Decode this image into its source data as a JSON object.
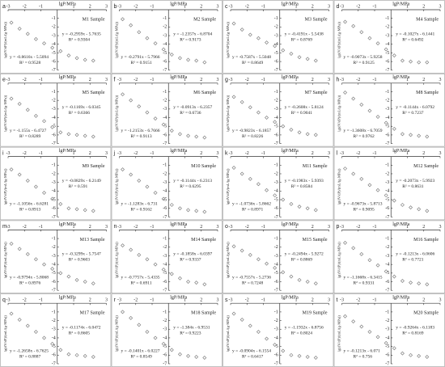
{
  "chart_data": [
    {
      "type": "scatter",
      "panel": "a",
      "sample": "M1 Sample",
      "x_label": "lgP/MPa",
      "y_label": "lg(dV/dP)/(mL/(g·MPa))",
      "xlim": [
        -3,
        3
      ],
      "ylim": [
        -7,
        0
      ],
      "xticks": [
        -3,
        -2,
        -1,
        1,
        2,
        3
      ],
      "yticks": [
        -1,
        -2,
        -3,
        -4,
        -5,
        -6,
        -7
      ],
      "color": "#808080",
      "x": [
        -2.8,
        -2.3,
        -1.8,
        -1.3,
        -0.8,
        -0.3,
        0.2,
        0.7,
        1.2,
        1.7,
        2.2
      ],
      "y": [
        -1.5,
        -2.2,
        -2.8,
        -3.4,
        -3.9,
        -4.4,
        -4.8,
        -5.3,
        -5.6,
        -5.8,
        -5.9
      ],
      "annotations": [
        "y = -0.2959x - 5.7635",
        "R² = 0.9304",
        "y = -0.8616x - 5.5094",
        "R² = 0.9528"
      ]
    },
    {
      "type": "scatter",
      "panel": "b",
      "sample": "M2 Sample",
      "x_label": "lgP/MPa",
      "y_label": "lg(dV/dP)/(mL/(g·MPa))",
      "xlim": [
        -3,
        3
      ],
      "ylim": [
        -7,
        0
      ],
      "xticks": [
        -3,
        -2,
        -1,
        1,
        2,
        3
      ],
      "yticks": [
        -1,
        -2,
        -3,
        -4,
        -5,
        -6,
        -7
      ],
      "color": "#808080",
      "x": [
        -2.8,
        -2.3,
        -1.8,
        -1.3,
        -0.8,
        -0.3,
        0.2,
        0.7,
        1.2,
        1.7,
        2.2
      ],
      "y": [
        -1.1,
        -1.8,
        -2.6,
        -3.3,
        -3.9,
        -4.6,
        -5.2,
        -5.6,
        -5.8,
        -5.9,
        -6.1
      ],
      "annotations": [
        "y = -1.2357x - 6.8704",
        "R² = 0.9173",
        "y = -0.2791x - 5.7966",
        "R² = 0.9151"
      ]
    },
    {
      "type": "scatter",
      "panel": "c",
      "sample": "M3 Sample",
      "x_label": "lgP/MPa",
      "y_label": "lg(dV/dP)/(mL/(g·MPa))",
      "xlim": [
        -3,
        3
      ],
      "ylim": [
        -7,
        0
      ],
      "xticks": [
        -3,
        -2,
        -1,
        1,
        2,
        3
      ],
      "yticks": [
        -1,
        -2,
        -3,
        -4,
        -5,
        -6,
        -7
      ],
      "color": "#808080",
      "x": [
        -2.8,
        -2.3,
        -1.8,
        -1.3,
        -0.8,
        -0.3,
        0.2,
        0.7,
        1.2,
        1.7,
        2.2
      ],
      "y": [
        -1.6,
        -2.3,
        -2.9,
        -3.3,
        -3.8,
        -4.2,
        -4.7,
        -5.1,
        -5.5,
        -5.7,
        -5.9
      ],
      "annotations": [
        "y = -0.4191x - 5.5438",
        "R² = 0.8769",
        "y = -0.7587x - 5.5048",
        "R² = 0.8649"
      ]
    },
    {
      "type": "scatter",
      "panel": "d",
      "sample": "M4 Sample",
      "x_label": "lgP/MPa",
      "y_label": "lg(dV/dP)/(mL/(g·MPa))",
      "xlim": [
        -3,
        3
      ],
      "ylim": [
        -7,
        0
      ],
      "xticks": [
        -3,
        -2,
        -1,
        1,
        2,
        3
      ],
      "yticks": [
        -1,
        -2,
        -3,
        -4,
        -5,
        -6,
        -7
      ],
      "color": "#808080",
      "x": [
        -2.8,
        -2.3,
        -1.8,
        -1.3,
        -0.8,
        -0.3,
        0.2,
        0.7,
        1.2,
        1.7,
        2.2
      ],
      "y": [
        -1.4,
        -1.9,
        -2.6,
        -3.3,
        -3.9,
        -4.6,
        -5.3,
        -5.9,
        -6.0,
        -6.1,
        -6.1
      ],
      "annotations": [
        "y = -0.1027x - 6.1441",
        "R² = 0.6492",
        "y = -0.9073x - 5.9258",
        "R² = 0.9125"
      ]
    },
    {
      "type": "scatter",
      "panel": "e",
      "sample": "M5 Sample",
      "x_label": "lgP/MPa",
      "y_label": "lg(dV/dP)/(mL/(g·MPa))",
      "xlim": [
        -3,
        3
      ],
      "ylim": [
        -7,
        0
      ],
      "xticks": [
        -3,
        -2,
        -1,
        1,
        2,
        3
      ],
      "yticks": [
        -1,
        -2,
        -3,
        -4,
        -5,
        -6,
        -7
      ],
      "color": "#808080",
      "x": [
        -2.8,
        -2.3,
        -1.8,
        -1.3,
        -0.8,
        -0.3,
        0.2,
        0.7,
        1.2,
        1.7,
        2.2
      ],
      "y": [
        -1.8,
        -2.4,
        -3.1,
        -3.8,
        -4.4,
        -5.1,
        -5.7,
        -5.9,
        -6.0,
        -6.1,
        -6.2
      ],
      "annotations": [
        "y = -0.1169x - 6.0345",
        "R² = 0.6366",
        "y = -1.155x - 6.4727",
        "R² = 0.8289"
      ]
    },
    {
      "type": "scatter",
      "panel": "f",
      "sample": "M6 Sample",
      "x_label": "lgP/MPa",
      "y_label": "lg(dV/dP)/(mL/(g·MPa))",
      "xlim": [
        -3,
        3
      ],
      "ylim": [
        -7,
        0
      ],
      "xticks": [
        -3,
        -2,
        -1,
        1,
        2,
        3
      ],
      "yticks": [
        -1,
        -2,
        -3,
        -4,
        -5,
        -6,
        -7
      ],
      "color": "#808080",
      "x": [
        -2.8,
        -2.3,
        -1.8,
        -1.3,
        -0.8,
        -0.3,
        0.2,
        0.7,
        1.2,
        1.7,
        2.2
      ],
      "y": [
        -1.3,
        -2.0,
        -2.7,
        -3.4,
        -4.1,
        -4.8,
        -5.5,
        -5.9,
        -6.1,
        -6.2,
        -6.3
      ],
      "annotations": [
        "y = -0.0913x - 6.2357",
        "R² = 0.6736",
        "y = -1.2153x - 6.7666",
        "R² = 0.9113"
      ]
    },
    {
      "type": "scatter",
      "panel": "g",
      "sample": "M7 Sample",
      "x_label": "lgP/MPa",
      "y_label": "lg(dV/dP)/(mL/(g·MPa))",
      "xlim": [
        -3,
        3
      ],
      "ylim": [
        -7,
        0
      ],
      "xticks": [
        -3,
        -2,
        -1,
        1,
        2,
        3
      ],
      "yticks": [
        -1,
        -2,
        -3,
        -4,
        -5,
        -6,
        -7
      ],
      "color": "#808080",
      "x": [
        -2.8,
        -2.3,
        -1.8,
        -1.3,
        -0.8,
        -0.3,
        0.2,
        0.7,
        1.2,
        1.7,
        2.2
      ],
      "y": [
        -1.6,
        -2.2,
        -2.8,
        -3.4,
        -4.0,
        -4.5,
        -5.0,
        -5.4,
        -5.7,
        -5.9,
        -6.0
      ],
      "annotations": [
        "y = -0.2608x - 5.8124",
        "R² = 0.9041",
        "y = -0.9823x - 6.1857",
        "R² = 0.8226"
      ]
    },
    {
      "type": "scatter",
      "panel": "h",
      "sample": "M8 Sample",
      "x_label": "lgP/MPa",
      "y_label": "lg(dV/dP)/(mL/(g·MPa))",
      "xlim": [
        -3,
        3
      ],
      "ylim": [
        -7,
        0
      ],
      "xticks": [
        -3,
        -2,
        -1,
        1,
        2,
        3
      ],
      "yticks": [
        -1,
        -2,
        -3,
        -4,
        -5,
        -6,
        -7
      ],
      "color": "#808080",
      "x": [
        -2.8,
        -2.3,
        -1.8,
        -1.3,
        -0.8,
        -0.3,
        0.2,
        0.7,
        1.2,
        1.7,
        2.2
      ],
      "y": [
        -1.1,
        -1.8,
        -2.5,
        -3.2,
        -3.9,
        -4.6,
        -5.3,
        -5.9,
        -6.0,
        -6.1,
        -6.2
      ],
      "annotations": [
        "y = -0.1144x - 6.0792",
        "R² = 0.7237",
        "y = -1.3608x - 6.7059",
        "R² = 0.9762"
      ]
    },
    {
      "type": "scatter",
      "panel": "i",
      "sample": "M9 Sample",
      "x_label": "lgP/MPa",
      "y_label": "lg(dV/dP)/(mL/(g·MPa))",
      "xlim": [
        -3,
        3
      ],
      "ylim": [
        -7,
        0
      ],
      "xticks": [
        -3,
        -2,
        -1,
        1,
        2,
        3
      ],
      "yticks": [
        -1,
        -2,
        -3,
        -4,
        -5,
        -6,
        -7
      ],
      "color": "#808080",
      "x": [
        -2.8,
        -2.3,
        -1.8,
        -1.3,
        -0.8,
        -0.3,
        0.2,
        0.7,
        1.2,
        1.7,
        2.2
      ],
      "y": [
        -1.5,
        -2.1,
        -2.8,
        -3.5,
        -4.2,
        -4.9,
        -5.5,
        -6.0,
        -6.1,
        -6.2,
        -6.3
      ],
      "annotations": [
        "y = -0.0829x - 6.2149",
        "R² = 0.591",
        "y = -1.1056x - 6.6281",
        "R² = 0.8913"
      ]
    },
    {
      "type": "scatter",
      "panel": "j",
      "sample": "M10 Sample",
      "x_label": "lgP/MPa",
      "y_label": "lg(dV/dP)/(mL/(g·MPa))",
      "xlim": [
        -3,
        3
      ],
      "ylim": [
        -7,
        0
      ],
      "xticks": [
        -3,
        -2,
        -1,
        1,
        2,
        3
      ],
      "yticks": [
        -1,
        -2,
        -3,
        -4,
        -5,
        -6,
        -7
      ],
      "color": "#808080",
      "x": [
        -2.8,
        -2.3,
        -1.8,
        -1.3,
        -0.8,
        -0.3,
        0.2,
        0.7,
        1.2,
        1.7,
        2.2
      ],
      "y": [
        -1.5,
        -2.1,
        -2.8,
        -3.5,
        -4.2,
        -4.9,
        -5.6,
        -6.0,
        -6.2,
        -6.3,
        -6.4
      ],
      "annotations": [
        "y = -0.1144x - 6.2313",
        "R² = 0.6295",
        "y = -1.1283x - 6.731",
        "R² = 0.9162"
      ]
    },
    {
      "type": "scatter",
      "panel": "k",
      "sample": "M11 Sample",
      "x_label": "lgP/MPa",
      "y_label": "lg(dV/dP)/(mL/(g·MPa))",
      "xlim": [
        -3,
        3
      ],
      "ylim": [
        -7,
        0
      ],
      "xticks": [
        -3,
        -2,
        -1,
        1,
        2,
        3
      ],
      "yticks": [
        -1,
        -2,
        -3,
        -4,
        -5,
        -6,
        -7
      ],
      "color": "#808080",
      "x": [
        -2.8,
        -2.3,
        -1.8,
        -1.3,
        -0.8,
        -0.3,
        0.2,
        0.7,
        1.2,
        1.7,
        2.2
      ],
      "y": [
        -1.3,
        -2.0,
        -2.6,
        -3.2,
        -3.9,
        -4.5,
        -5.0,
        -5.5,
        -5.8,
        -6.0,
        -6.2
      ],
      "annotations": [
        "y = -0.1983x - 5.9393",
        "R² = 0.8584",
        "y = -1.0736x - 5.8662",
        "R² = 0.8971"
      ]
    },
    {
      "type": "scatter",
      "panel": "l",
      "sample": "M12 Sample",
      "x_label": "lgP/MPa",
      "y_label": "lg(dV/dP)/(mL/(g·MPa))",
      "xlim": [
        -3,
        3
      ],
      "ylim": [
        -7,
        0
      ],
      "xticks": [
        -3,
        -2,
        -1,
        1,
        2,
        3
      ],
      "yticks": [
        -1,
        -2,
        -3,
        -4,
        -5,
        -6,
        -7
      ],
      "color": "#808080",
      "x": [
        -2.8,
        -2.3,
        -1.8,
        -1.3,
        -0.8,
        -0.3,
        0.2,
        0.7,
        1.2,
        1.7,
        2.2
      ],
      "y": [
        -1.4,
        -2.0,
        -2.6,
        -3.3,
        -3.9,
        -4.5,
        -5.1,
        -5.6,
        -5.9,
        -6.1,
        -6.3
      ],
      "annotations": [
        "y = -0.2073x - 5.9923",
        "R² = 0.8631",
        "y = -0.9673x - 5.8713",
        "R² = 0.9095"
      ]
    },
    {
      "type": "scatter",
      "panel": "m",
      "sample": "M13 Sample",
      "x_label": "lgP/MPa",
      "y_label": "lg(dV/dP)/(mL/(g·MPa))",
      "xlim": [
        -3,
        3
      ],
      "ylim": [
        -7,
        0
      ],
      "xticks": [
        -3,
        -2,
        -1,
        1,
        2,
        3
      ],
      "yticks": [
        -1,
        -2,
        -3,
        -4,
        -5,
        -6,
        -7
      ],
      "color": "#808080",
      "x": [
        -2.8,
        -2.3,
        -1.8,
        -1.3,
        -0.8,
        -0.3,
        0.2,
        0.7,
        1.2,
        1.7,
        2.2
      ],
      "y": [
        -1.6,
        -2.2,
        -2.8,
        -3.4,
        -4.0,
        -4.5,
        -5.0,
        -5.4,
        -5.8,
        -6.0,
        -6.2
      ],
      "annotations": [
        "y = -0.3299x - 5.7547",
        "R² = 0.9603",
        "y = -0.9794x - 5.8068",
        "R² = 0.8976"
      ]
    },
    {
      "type": "scatter",
      "panel": "n",
      "sample": "M14 Sample",
      "x_label": "lgP/MPa",
      "y_label": "lg(dV/dP)/(mL/(g·MPa))",
      "xlim": [
        -3,
        3
      ],
      "ylim": [
        -7,
        0
      ],
      "xticks": [
        -3,
        -2,
        -1,
        1,
        2,
        3
      ],
      "yticks": [
        -1,
        -2,
        -3,
        -4,
        -5,
        -6,
        -7
      ],
      "color": "#808080",
      "x": [
        -2.8,
        -2.3,
        -1.8,
        -1.3,
        -0.8,
        -0.3,
        0.2,
        0.7,
        1.2,
        1.7,
        2.2
      ],
      "y": [
        -1.8,
        -2.3,
        -2.9,
        -3.4,
        -4.0,
        -4.6,
        -5.1,
        -5.6,
        -6.0,
        -6.1,
        -6.3
      ],
      "annotations": [
        "y = -0.1858x - 6.0397",
        "R² = 0.9337",
        "y = -0.7757x - 5.4335",
        "R² = 0.6911"
      ]
    },
    {
      "type": "scatter",
      "panel": "o",
      "sample": "M15 Sample",
      "x_label": "lgP/MPa",
      "y_label": "lg(dV/dP)/(mL/(g·MPa))",
      "xlim": [
        -3,
        3
      ],
      "ylim": [
        -7,
        0
      ],
      "xticks": [
        -3,
        -2,
        -1,
        1,
        2,
        3
      ],
      "yticks": [
        -1,
        -2,
        -3,
        -4,
        -5,
        -6,
        -7
      ],
      "color": "#808080",
      "x": [
        -2.8,
        -2.3,
        -1.8,
        -1.3,
        -0.8,
        -0.3,
        0.2,
        0.7,
        1.2,
        1.7,
        2.2
      ],
      "y": [
        -1.9,
        -2.4,
        -2.9,
        -3.4,
        -3.9,
        -4.4,
        -4.9,
        -5.4,
        -5.8,
        -6.0,
        -6.2
      ],
      "annotations": [
        "y = -0.2494x - 5.9272",
        "R² = 0.8869",
        "y = -0.7557x - 5.2736",
        "R² = 0.7248"
      ]
    },
    {
      "type": "scatter",
      "panel": "p",
      "sample": "M16 Sample",
      "x_label": "lgP/MPa",
      "y_label": "lg(dV/dP)/(mL/(g·MPa))",
      "xlim": [
        -3,
        3
      ],
      "ylim": [
        -7,
        0
      ],
      "xticks": [
        -3,
        -2,
        -1,
        1,
        2,
        3
      ],
      "yticks": [
        -1,
        -2,
        -3,
        -4,
        -5,
        -6,
        -7
      ],
      "color": "#808080",
      "x": [
        -2.8,
        -2.3,
        -1.8,
        -1.3,
        -0.8,
        -0.3,
        0.2,
        0.7,
        1.2,
        1.7,
        2.2
      ],
      "y": [
        -1.5,
        -2.1,
        -2.8,
        -3.5,
        -4.1,
        -4.8,
        -5.4,
        -5.9,
        -6.1,
        -6.2,
        -6.3
      ],
      "annotations": [
        "y = -0.1213x - 6.0606",
        "R² = 0.7721",
        "y = -1.1668x - 6.3415",
        "R² = 0.9331"
      ]
    },
    {
      "type": "scatter",
      "panel": "q",
      "sample": "M17 Sample",
      "x_label": "lgP/MPa",
      "y_label": "lg(dV/dP)/(mL/(g·MPa))",
      "xlim": [
        -3,
        3
      ],
      "ylim": [
        -7,
        0
      ],
      "xticks": [
        -3,
        -2,
        -1,
        1,
        2,
        3
      ],
      "yticks": [
        -1,
        -2,
        -3,
        -4,
        -5,
        -6,
        -7
      ],
      "color": "#808080",
      "x": [
        -2.8,
        -2.3,
        -1.8,
        -1.3,
        -0.8,
        -0.3,
        0.2,
        0.7,
        1.2,
        1.7,
        2.2
      ],
      "y": [
        -1.2,
        -1.9,
        -2.6,
        -3.3,
        -4.0,
        -4.7,
        -5.4,
        -5.9,
        -6.0,
        -6.1,
        -6.2
      ],
      "annotations": [
        "y = -0.1174x - 6.0472",
        "R² = 0.8605",
        "y = -1.2658x - 6.7625",
        "R² = 0.8887"
      ]
    },
    {
      "type": "scatter",
      "panel": "r",
      "sample": "M18 Sample",
      "x_label": "lgP/MPa",
      "y_label": "lg(dV/dP)/(mL/(g·MPa))",
      "xlim": [
        -3,
        3
      ],
      "ylim": [
        -7,
        0
      ],
      "xticks": [
        -3,
        -2,
        -1,
        1,
        2,
        3
      ],
      "yticks": [
        -1,
        -2,
        -3,
        -4,
        -5,
        -6,
        -7
      ],
      "color": "#808080",
      "x": [
        -2.8,
        -2.3,
        -1.8,
        -1.3,
        -0.8,
        -0.3,
        0.2,
        0.7,
        1.2,
        1.7,
        2.2
      ],
      "y": [
        -1.0,
        -1.7,
        -2.5,
        -3.3,
        -4.0,
        -4.7,
        -5.4,
        -5.9,
        -6.1,
        -6.2,
        -6.3
      ],
      "annotations": [
        "y = -1.384x - 6.9531",
        "R² = 0.9223",
        "y = -0.1401x - 6.0227",
        "R² = 0.8549"
      ]
    },
    {
      "type": "scatter",
      "panel": "s",
      "sample": "M19 Sample",
      "x_label": "lgP/MPa",
      "y_label": "lg(dV/dP)/(mL/(g·MPa))",
      "xlim": [
        -3,
        3
      ],
      "ylim": [
        -7,
        0
      ],
      "xticks": [
        -3,
        -2,
        -1,
        1,
        2,
        3
      ],
      "yticks": [
        -1,
        -2,
        -3,
        -4,
        -5,
        -6,
        -7
      ],
      "color": "#808080",
      "x": [
        -2.8,
        -2.3,
        -1.8,
        -1.3,
        -0.8,
        -0.3,
        0.2,
        0.7,
        1.2,
        1.7,
        2.2
      ],
      "y": [
        -1.2,
        -1.9,
        -2.6,
        -3.3,
        -4.1,
        -4.8,
        -5.5,
        -6.0,
        -6.1,
        -6.2,
        -6.3
      ],
      "annotations": [
        "y = -1.1932x - 6.8756",
        "R² = 0.8024",
        "y = -0.0904x - 6.1554",
        "R² = 0.6417"
      ]
    },
    {
      "type": "scatter",
      "panel": "t",
      "sample": "M20 Sample",
      "x_label": "lgP/MPa",
      "y_label": "lg(dV/dP)/(mL/(g·MPa))",
      "xlim": [
        -3,
        3
      ],
      "ylim": [
        -7,
        0
      ],
      "xticks": [
        -3,
        -2,
        -1,
        1,
        2,
        3
      ],
      "yticks": [
        -1,
        -2,
        -3,
        -4,
        -5,
        -6,
        -7
      ],
      "color": "#808080",
      "x": [
        -2.8,
        -2.3,
        -1.8,
        -1.3,
        -0.8,
        -0.3,
        0.2,
        0.7,
        1.2,
        1.7,
        2.2
      ],
      "y": [
        -1.5,
        -2.1,
        -2.7,
        -3.3,
        -3.9,
        -4.6,
        -5.2,
        -5.8,
        -6.0,
        -6.1,
        -6.2
      ],
      "annotations": [
        "y = -0.9264x - 6.1183",
        "R² = 0.8169",
        "y = -0.1213x - 6.071",
        "R² = 0.756"
      ]
    }
  ]
}
